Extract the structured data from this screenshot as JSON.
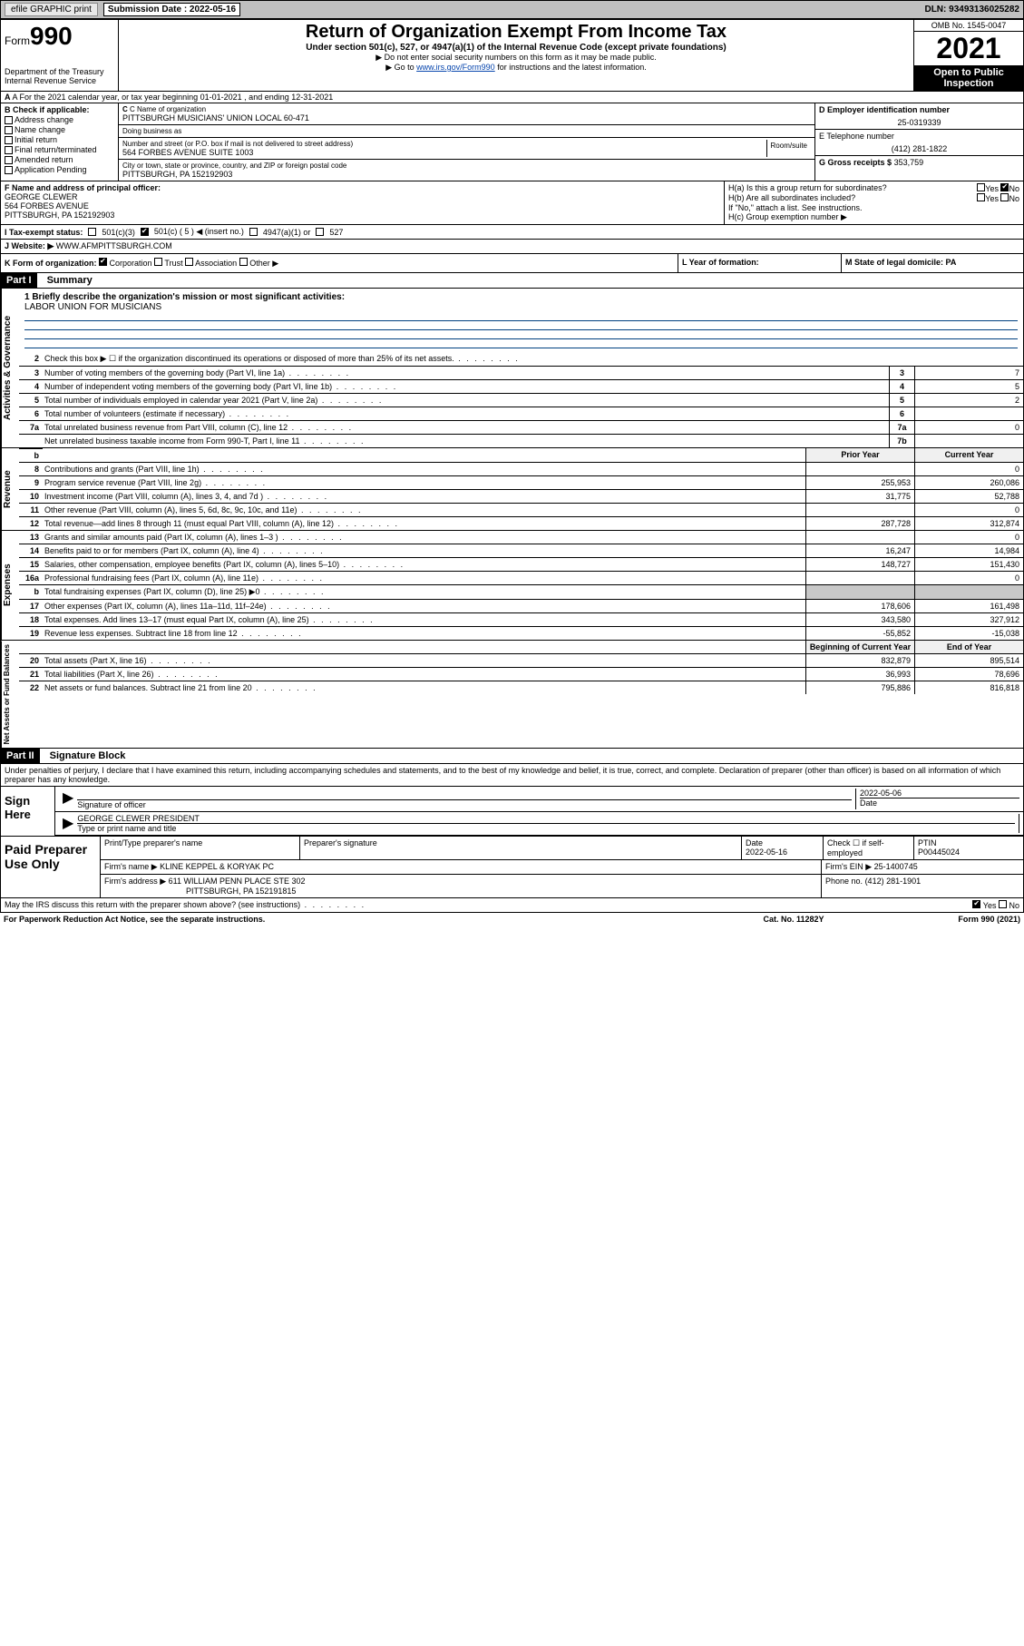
{
  "topbar": {
    "efile": "efile GRAPHIC print",
    "submission_label": "Submission Date : 2022-05-16",
    "dln": "DLN: 93493136025282"
  },
  "header": {
    "form_prefix": "Form",
    "form_num": "990",
    "dept": "Department of the Treasury Internal Revenue Service",
    "title": "Return of Organization Exempt From Income Tax",
    "subtitle": "Under section 501(c), 527, or 4947(a)(1) of the Internal Revenue Code (except private foundations)",
    "note1": "▶ Do not enter social security numbers on this form as it may be made public.",
    "note2_pre": "▶ Go to ",
    "note2_link": "www.irs.gov/Form990",
    "note2_post": " for instructions and the latest information.",
    "omb": "OMB No. 1545-0047",
    "year": "2021",
    "open_pub": "Open to Public Inspection"
  },
  "row_a": "A For the 2021 calendar year, or tax year beginning 01-01-2021    , and ending 12-31-2021",
  "section_b": {
    "heading": "B Check if applicable:",
    "items": [
      "Address change",
      "Name change",
      "Initial return",
      "Final return/terminated",
      "Amended return",
      "Application Pending"
    ]
  },
  "section_c": {
    "name_lbl": "C Name of organization",
    "org_name": "PITTSBURGH MUSICIANS' UNION LOCAL 60-471",
    "dba_lbl": "Doing business as",
    "addr_lbl": "Number and street (or P.O. box if mail is not delivered to street address)",
    "addr": "564 FORBES AVENUE SUITE 1003",
    "room_lbl": "Room/suite",
    "city_lbl": "City or town, state or province, country, and ZIP or foreign postal code",
    "city": "PITTSBURGH, PA  152192903"
  },
  "section_d": {
    "lbl": "D Employer identification number",
    "val": "25-0319339"
  },
  "section_e": {
    "lbl": "E Telephone number",
    "val": "(412) 281-1822"
  },
  "section_g": {
    "lbl": "G Gross receipts $",
    "val": "353,759"
  },
  "section_f": {
    "lbl": "F Name and address of principal officer:",
    "name": "GEORGE CLEWER",
    "addr1": "564 FORBES AVENUE",
    "addr2": "PITTSBURGH, PA  152192903"
  },
  "section_h": {
    "ha": "H(a)  Is this a group return for subordinates?",
    "hb": "H(b)  Are all subordinates included?",
    "hb_note": "If \"No,\" attach a list. See instructions.",
    "hc": "H(c)  Group exemption number ▶",
    "yes": "Yes",
    "no": "No"
  },
  "row_i": {
    "lbl": "I  Tax-exempt status:",
    "opts": [
      "501(c)(3)",
      "501(c) ( 5 ) ◀ (insert no.)",
      "4947(a)(1) or",
      "527"
    ]
  },
  "row_j": {
    "lbl": "J  Website: ▶",
    "val": "WWW.AFMPITTSBURGH.COM"
  },
  "row_k": {
    "lbl": "K Form of organization:",
    "opts": [
      "Corporation",
      "Trust",
      "Association",
      "Other ▶"
    ]
  },
  "row_l": {
    "lbl": "L Year of formation:"
  },
  "row_m": {
    "lbl": "M State of legal domicile: PA"
  },
  "part1": {
    "hdr": "Part I",
    "title": "Summary",
    "mission_lbl": "1  Briefly describe the organization's mission or most significant activities:",
    "mission": "LABOR UNION FOR MUSICIANS",
    "vert_labels": [
      "Activities & Governance",
      "Revenue",
      "Expenses",
      "Net Assets or Fund Balances"
    ],
    "lines_gov": [
      {
        "n": "2",
        "d": "Check this box ▶ ☐  if the organization discontinued its operations or disposed of more than 25% of its net assets."
      },
      {
        "n": "3",
        "d": "Number of voting members of the governing body (Part VI, line 1a)",
        "box": "3",
        "v": "7"
      },
      {
        "n": "4",
        "d": "Number of independent voting members of the governing body (Part VI, line 1b)",
        "box": "4",
        "v": "5"
      },
      {
        "n": "5",
        "d": "Total number of individuals employed in calendar year 2021 (Part V, line 2a)",
        "box": "5",
        "v": "2"
      },
      {
        "n": "6",
        "d": "Total number of volunteers (estimate if necessary)",
        "box": "6",
        "v": ""
      },
      {
        "n": "7a",
        "d": "Total unrelated business revenue from Part VIII, column (C), line 12",
        "box": "7a",
        "v": "0"
      },
      {
        "n": "",
        "d": "Net unrelated business taxable income from Form 990-T, Part I, line 11",
        "box": "7b",
        "v": ""
      }
    ],
    "col_headers": {
      "prior": "Prior Year",
      "current": "Current Year",
      "boc": "Beginning of Current Year",
      "eoy": "End of Year"
    },
    "lines_rev": [
      {
        "n": "8",
        "d": "Contributions and grants (Part VIII, line 1h)",
        "p": "",
        "c": "0"
      },
      {
        "n": "9",
        "d": "Program service revenue (Part VIII, line 2g)",
        "p": "255,953",
        "c": "260,086"
      },
      {
        "n": "10",
        "d": "Investment income (Part VIII, column (A), lines 3, 4, and 7d )",
        "p": "31,775",
        "c": "52,788"
      },
      {
        "n": "11",
        "d": "Other revenue (Part VIII, column (A), lines 5, 6d, 8c, 9c, 10c, and 11e)",
        "p": "",
        "c": "0"
      },
      {
        "n": "12",
        "d": "Total revenue—add lines 8 through 11 (must equal Part VIII, column (A), line 12)",
        "p": "287,728",
        "c": "312,874"
      }
    ],
    "lines_exp": [
      {
        "n": "13",
        "d": "Grants and similar amounts paid (Part IX, column (A), lines 1–3 )",
        "p": "",
        "c": "0"
      },
      {
        "n": "14",
        "d": "Benefits paid to or for members (Part IX, column (A), line 4)",
        "p": "16,247",
        "c": "14,984"
      },
      {
        "n": "15",
        "d": "Salaries, other compensation, employee benefits (Part IX, column (A), lines 5–10)",
        "p": "148,727",
        "c": "151,430"
      },
      {
        "n": "16a",
        "d": "Professional fundraising fees (Part IX, column (A), line 11e)",
        "p": "",
        "c": "0"
      },
      {
        "n": "b",
        "d": "Total fundraising expenses (Part IX, column (D), line 25) ▶0",
        "p": "SHADE",
        "c": "SHADE"
      },
      {
        "n": "17",
        "d": "Other expenses (Part IX, column (A), lines 11a–11d, 11f–24e)",
        "p": "178,606",
        "c": "161,498"
      },
      {
        "n": "18",
        "d": "Total expenses. Add lines 13–17 (must equal Part IX, column (A), line 25)",
        "p": "343,580",
        "c": "327,912"
      },
      {
        "n": "19",
        "d": "Revenue less expenses. Subtract line 18 from line 12",
        "p": "-55,852",
        "c": "-15,038"
      }
    ],
    "lines_net": [
      {
        "n": "20",
        "d": "Total assets (Part X, line 16)",
        "p": "832,879",
        "c": "895,514"
      },
      {
        "n": "21",
        "d": "Total liabilities (Part X, line 26)",
        "p": "36,993",
        "c": "78,696"
      },
      {
        "n": "22",
        "d": "Net assets or fund balances. Subtract line 21 from line 20",
        "p": "795,886",
        "c": "816,818"
      }
    ]
  },
  "part2": {
    "hdr": "Part II",
    "title": "Signature Block",
    "decl": "Under penalties of perjury, I declare that I have examined this return, including accompanying schedules and statements, and to the best of my knowledge and belief, it is true, correct, and complete. Declaration of preparer (other than officer) is based on all information of which preparer has any knowledge.",
    "sign_here": "Sign Here",
    "sig_officer_lbl": "Signature of officer",
    "date_lbl": "Date",
    "sig_date": "2022-05-06",
    "officer_name": "GEORGE CLEWER  PRESIDENT",
    "officer_lbl": "Type or print name and title"
  },
  "preparer": {
    "hdr": "Paid Preparer Use Only",
    "cols": [
      "Print/Type preparer's name",
      "Preparer's signature",
      "Date",
      "",
      "PTIN"
    ],
    "date": "2022-05-16",
    "check_lbl": "Check ☐ if self-employed",
    "ptin": "P00445024",
    "firm_name_lbl": "Firm's name      ▶",
    "firm_name": "KLINE KEPPEL & KORYAK PC",
    "firm_ein_lbl": "Firm's EIN ▶",
    "firm_ein": "25-1400745",
    "firm_addr_lbl": "Firm's address ▶",
    "firm_addr1": "611 WILLIAM PENN PLACE STE 302",
    "firm_addr2": "PITTSBURGH, PA  152191815",
    "phone_lbl": "Phone no.",
    "phone": "(412) 281-1901"
  },
  "may_irs": {
    "q": "May the IRS discuss this return with the preparer shown above? (see instructions)",
    "yes": "Yes",
    "no": "No"
  },
  "footer": {
    "pra": "For Paperwork Reduction Act Notice, see the separate instructions.",
    "cat": "Cat. No. 11282Y",
    "form": "Form 990 (2021)"
  }
}
